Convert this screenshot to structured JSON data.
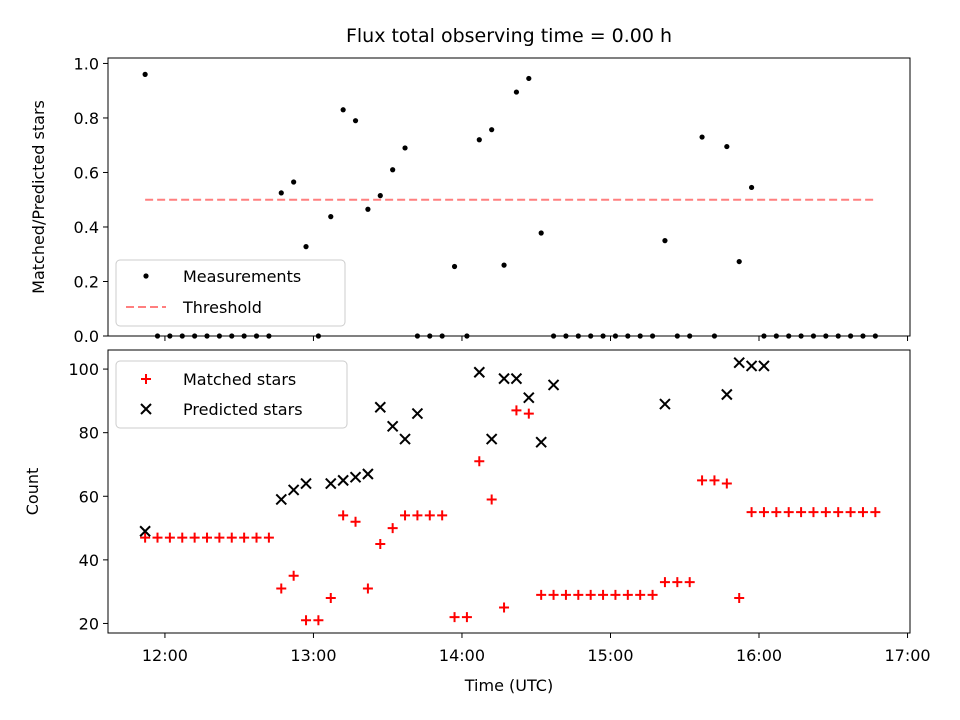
{
  "chart_data": [
    {
      "type": "scatter",
      "title": "Flux total observing time = 0.00 h",
      "xlabel": "",
      "ylabel": "Matched/Predicted stars",
      "ylim": [
        0,
        1.02
      ],
      "yticks": [
        "0.0",
        "0.2",
        "0.4",
        "0.6",
        "0.8",
        "1.0"
      ],
      "grid": false,
      "legend_position": "lower-left",
      "series": [
        {
          "name": "Measurements",
          "marker": "dot",
          "color": "#000000",
          "x": [
            "11:52",
            "11:57",
            "12:02",
            "12:07",
            "12:12",
            "12:17",
            "12:22",
            "12:27",
            "12:32",
            "12:37",
            "12:42",
            "12:47",
            "12:52",
            "12:57",
            "13:02",
            "13:07",
            "13:12",
            "13:17",
            "13:22",
            "13:27",
            "13:32",
            "13:37",
            "13:42",
            "13:47",
            "13:52",
            "13:57",
            "14:02",
            "14:07",
            "14:12",
            "14:17",
            "14:22",
            "14:27",
            "14:32",
            "14:37",
            "14:42",
            "14:47",
            "14:52",
            "14:57",
            "15:02",
            "15:07",
            "15:12",
            "15:17",
            "15:22",
            "15:27",
            "15:32",
            "15:37",
            "15:42",
            "15:47",
            "15:52",
            "15:57",
            "16:02",
            "16:07",
            "16:12",
            "16:17",
            "16:22",
            "16:27",
            "16:32",
            "16:37",
            "16:42",
            "16:47"
          ],
          "y": [
            0.96,
            0,
            0,
            0,
            0,
            0,
            0,
            0,
            0,
            0,
            0,
            0.525,
            0.565,
            0.328,
            0,
            0.438,
            0.83,
            0.79,
            0.465,
            0.515,
            0.61,
            0.69,
            0,
            0,
            0,
            0.255,
            0,
            0.72,
            0.757,
            0.26,
            0.895,
            0.945,
            0.378,
            0,
            0,
            0,
            0,
            0,
            0,
            0,
            0,
            0,
            0.35,
            0,
            0,
            0.73,
            0,
            0.695,
            0.273,
            0.545,
            0,
            0,
            0,
            0,
            0,
            0,
            0,
            0,
            0,
            0
          ]
        },
        {
          "name": "Threshold",
          "line": "dashed",
          "color": "#ff7f7f",
          "x": [
            "11:52",
            "16:47"
          ],
          "y": [
            0.5,
            0.5
          ]
        }
      ]
    },
    {
      "type": "scatter",
      "title": "",
      "xlabel": "Time (UTC)",
      "ylabel": "Count",
      "ylim": [
        17,
        106
      ],
      "yticks": [
        "20",
        "40",
        "60",
        "80",
        "100"
      ],
      "xticks": [
        "12:00",
        "13:00",
        "14:00",
        "15:00",
        "16:00",
        "17:00"
      ],
      "xlim": [
        "11:37",
        "17:01"
      ],
      "grid": false,
      "legend_position": "upper-left",
      "series": [
        {
          "name": "Matched stars",
          "marker": "plus",
          "color": "#ff0000",
          "x": [
            "11:52",
            "11:57",
            "12:02",
            "12:07",
            "12:12",
            "12:17",
            "12:22",
            "12:27",
            "12:32",
            "12:37",
            "12:42",
            "12:47",
            "12:52",
            "12:57",
            "13:02",
            "13:07",
            "13:12",
            "13:17",
            "13:22",
            "13:27",
            "13:32",
            "13:37",
            "13:42",
            "13:47",
            "13:52",
            "13:57",
            "14:02",
            "14:07",
            "14:12",
            "14:17",
            "14:22",
            "14:27",
            "14:32",
            "14:37",
            "14:42",
            "14:47",
            "14:52",
            "14:57",
            "15:02",
            "15:07",
            "15:12",
            "15:17",
            "15:22",
            "15:27",
            "15:32",
            "15:37",
            "15:42",
            "15:47",
            "15:52",
            "15:57",
            "16:02",
            "16:07",
            "16:12",
            "16:17",
            "16:22",
            "16:27",
            "16:32",
            "16:37",
            "16:42",
            "16:47"
          ],
          "y": [
            47,
            47,
            47,
            47,
            47,
            47,
            47,
            47,
            47,
            47,
            47,
            31,
            35,
            21,
            21,
            28,
            54,
            52,
            31,
            45,
            50,
            54,
            54,
            54,
            54,
            22,
            22,
            71,
            59,
            25,
            87,
            86,
            29,
            29,
            29,
            29,
            29,
            29,
            29,
            29,
            29,
            29,
            33,
            33,
            33,
            65,
            65,
            64,
            28,
            55,
            55,
            55,
            55,
            55,
            55,
            55,
            55,
            55,
            55,
            55
          ]
        },
        {
          "name": "Predicted stars",
          "marker": "x",
          "color": "#000000",
          "x": [
            "11:52",
            "12:47",
            "12:52",
            "12:57",
            "13:07",
            "13:12",
            "13:17",
            "13:22",
            "13:27",
            "13:32",
            "13:37",
            "13:42",
            "14:07",
            "14:12",
            "14:17",
            "14:22",
            "14:27",
            "14:32",
            "14:37",
            "15:22",
            "15:47",
            "15:52",
            "15:57",
            "16:02"
          ],
          "y": [
            49,
            59,
            62,
            64,
            64,
            65,
            66,
            67,
            88,
            82,
            78,
            86,
            99,
            78,
            97,
            97,
            91,
            77,
            95,
            89,
            92,
            102,
            101,
            101
          ]
        }
      ]
    }
  ]
}
